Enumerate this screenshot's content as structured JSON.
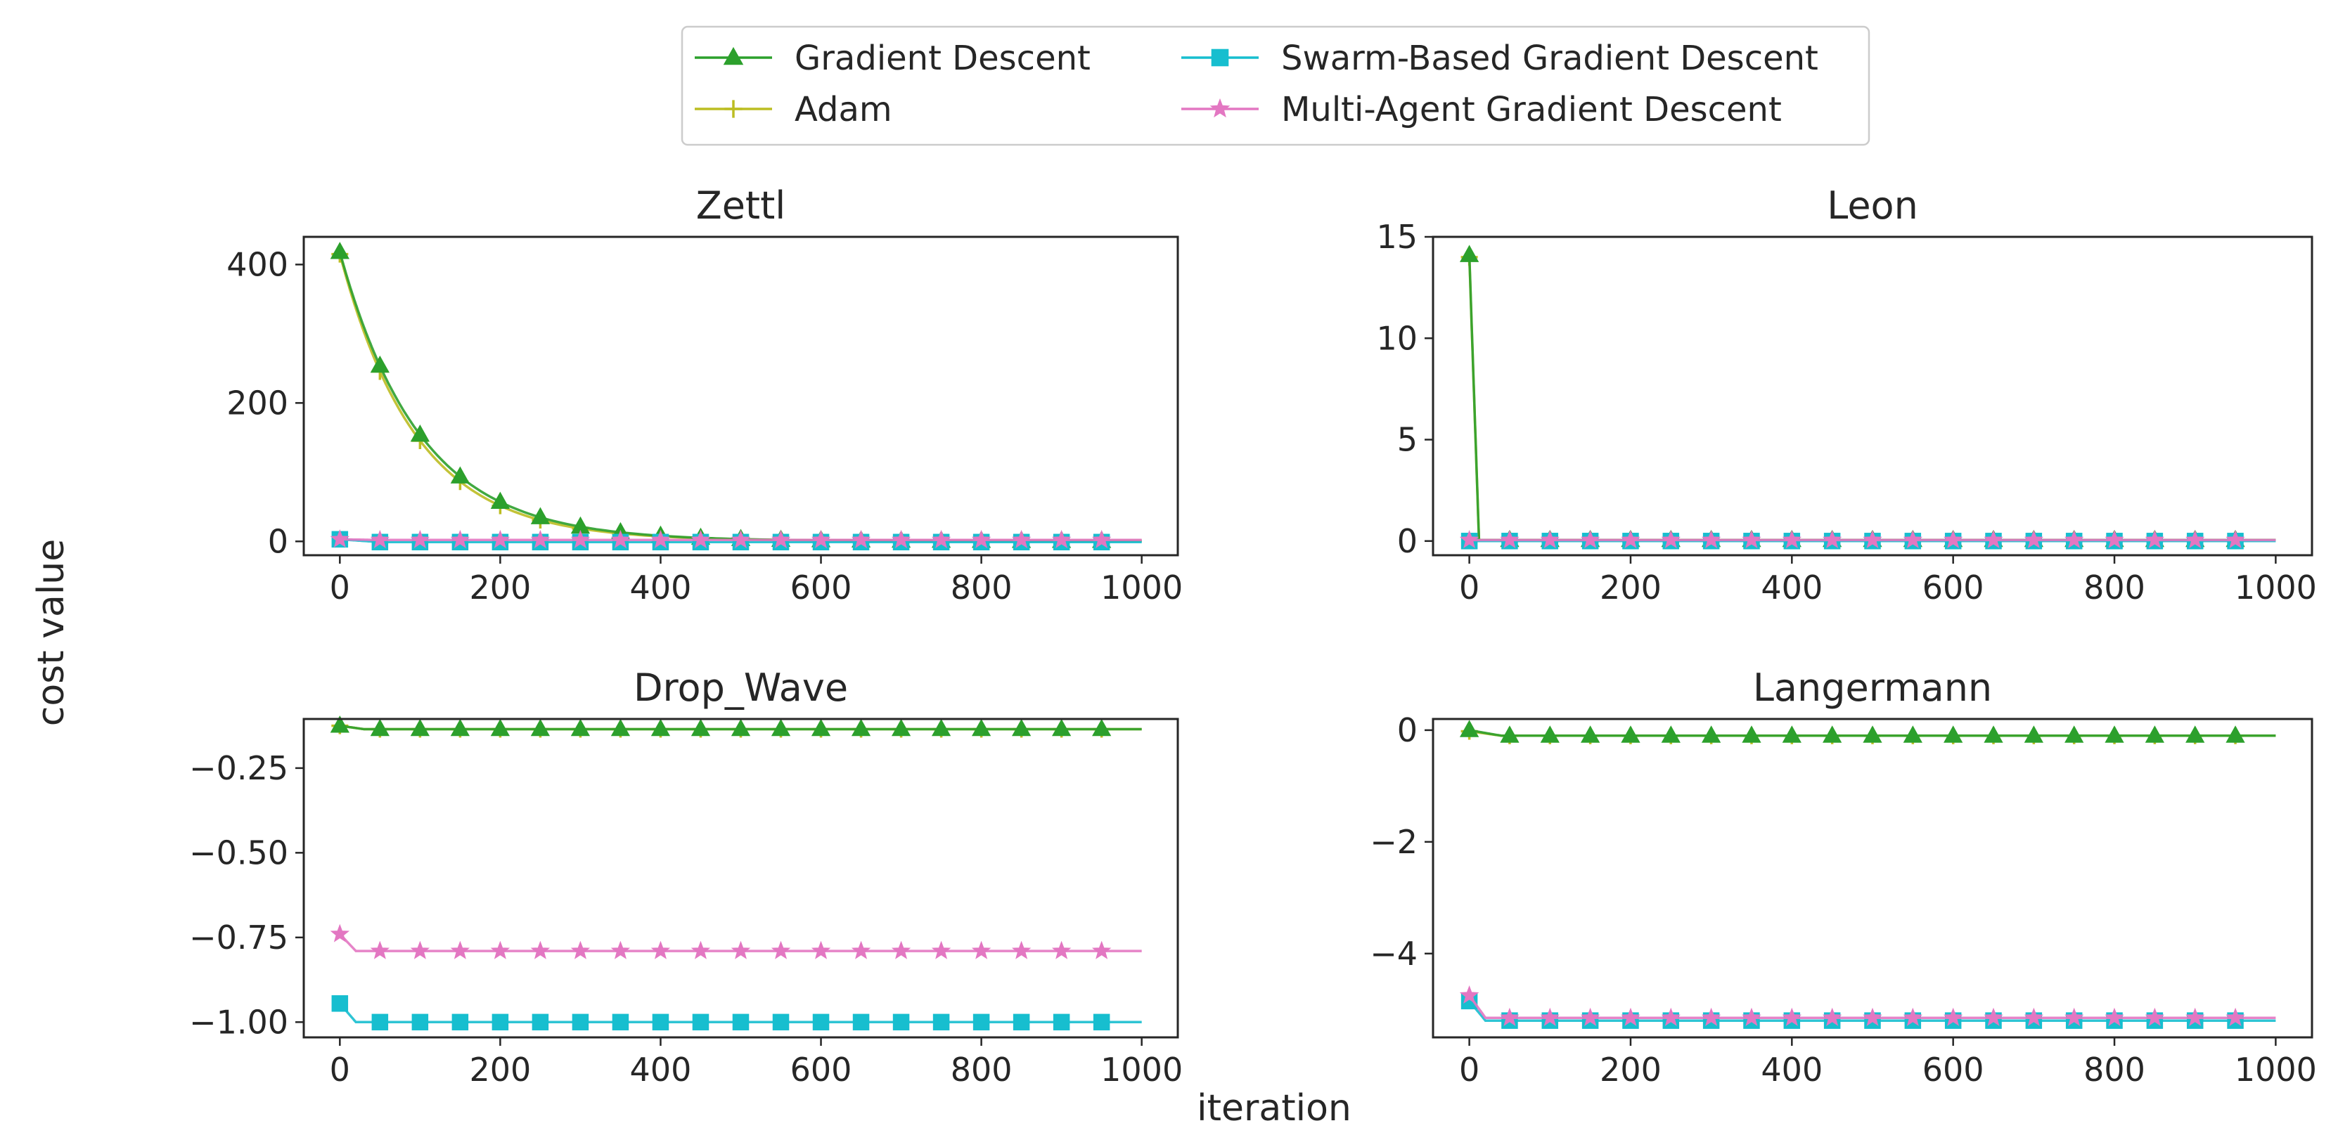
{
  "figure": {
    "ylabel": "cost value",
    "xlabel": "iteration"
  },
  "legend": {
    "placement": "top-center",
    "entries": [
      {
        "key": "gd",
        "label": "Gradient Descent",
        "marker": "triangle",
        "color": "#2ca02c"
      },
      {
        "key": "adam",
        "label": "Adam",
        "marker": "plus",
        "color": "#bcbd22"
      },
      {
        "key": "sbgd",
        "label": "Swarm-Based Gradient Descent",
        "marker": "square",
        "color": "#17becf"
      },
      {
        "key": "magd",
        "label": "Multi-Agent Gradient Descent",
        "marker": "star",
        "color": "#e377c2"
      }
    ]
  },
  "chart_data": [
    {
      "type": "line",
      "title": "Zettl",
      "xlim": [
        -45,
        1045
      ],
      "ylim": [
        -20,
        440
      ],
      "xticks": [
        0,
        200,
        400,
        600,
        800,
        1000
      ],
      "xtick_labels": [
        "0",
        "200",
        "400",
        "600",
        "800",
        "1000"
      ],
      "yticks": [
        0,
        200,
        400
      ],
      "ytick_labels": [
        "0",
        "200",
        "400"
      ],
      "series": [
        {
          "key": "adam",
          "name": "Adam",
          "profile": "exp",
          "start": 415,
          "end": 1,
          "tau": 95,
          "marker_every": 50
        },
        {
          "key": "gd",
          "name": "Gradient Descent",
          "profile": "exp",
          "start": 418,
          "end": 0.5,
          "tau": 100,
          "marker_every": 50
        },
        {
          "key": "sbgd",
          "name": "Swarm-Based Gradient Descent",
          "profile": "steps",
          "points": [
            [
              0,
              3
            ],
            [
              50,
              -1
            ],
            [
              100,
              -1
            ]
          ],
          "end": -1,
          "marker_every": 50
        },
        {
          "key": "magd",
          "name": "Multi-Agent Gradient Descent",
          "profile": "steps",
          "points": [
            [
              0,
              3
            ],
            [
              50,
              2
            ]
          ],
          "end": 2,
          "marker_every": 50
        }
      ]
    },
    {
      "type": "line",
      "title": "Leon",
      "xlim": [
        -45,
        1045
      ],
      "ylim": [
        -0.7,
        15.0
      ],
      "xticks": [
        0,
        200,
        400,
        600,
        800,
        1000
      ],
      "xtick_labels": [
        "0",
        "200",
        "400",
        "600",
        "800",
        "1000"
      ],
      "yticks": [
        0,
        5,
        10,
        15
      ],
      "ytick_labels": [
        "0",
        "5",
        "10",
        "15"
      ],
      "series": [
        {
          "key": "adam",
          "name": "Adam",
          "profile": "spike",
          "start": 14.0,
          "end": 0.05,
          "drop_at": 12,
          "marker_every": 50
        },
        {
          "key": "gd",
          "name": "Gradient Descent",
          "profile": "spike",
          "start": 14.1,
          "end": 0.05,
          "drop_at": 12,
          "marker_every": 50
        },
        {
          "key": "sbgd",
          "name": "Swarm-Based Gradient Descent",
          "profile": "steps",
          "points": [
            [
              0,
              0.0
            ]
          ],
          "end": 0.0,
          "marker_every": 50
        },
        {
          "key": "magd",
          "name": "Multi-Agent Gradient Descent",
          "profile": "steps",
          "points": [
            [
              0,
              0.05
            ]
          ],
          "end": 0.05,
          "marker_every": 50
        }
      ]
    },
    {
      "type": "line",
      "title": "Drop_Wave",
      "xlim": [
        -45,
        1045
      ],
      "ylim": [
        -1.045,
        -0.105
      ],
      "xticks": [
        0,
        200,
        400,
        600,
        800,
        1000
      ],
      "xtick_labels": [
        "0",
        "200",
        "400",
        "600",
        "800",
        "1000"
      ],
      "yticks": [
        -1.0,
        -0.75,
        -0.5,
        -0.25
      ],
      "ytick_labels": [
        "−1.00",
        "−0.75",
        "−0.50",
        "−0.25"
      ],
      "series": [
        {
          "key": "adam",
          "name": "Adam",
          "profile": "steps",
          "points": [
            [
              0,
              -0.125
            ],
            [
              30,
              -0.135
            ]
          ],
          "end": -0.135,
          "marker_every": 50
        },
        {
          "key": "gd",
          "name": "Gradient Descent",
          "profile": "steps",
          "points": [
            [
              0,
              -0.125
            ],
            [
              30,
              -0.135
            ]
          ],
          "end": -0.135,
          "marker_every": 50
        },
        {
          "key": "sbgd",
          "name": "Swarm-Based Gradient Descent",
          "profile": "steps",
          "points": [
            [
              0,
              -0.945
            ],
            [
              20,
              -1.0
            ]
          ],
          "end": -1.0,
          "marker_every": 50
        },
        {
          "key": "magd",
          "name": "Multi-Agent Gradient Descent",
          "profile": "steps",
          "points": [
            [
              0,
              -0.74
            ],
            [
              20,
              -0.79
            ]
          ],
          "end": -0.79,
          "marker_every": 50
        }
      ]
    },
    {
      "type": "line",
      "title": "Langermann",
      "xlim": [
        -45,
        1045
      ],
      "ylim": [
        -5.5,
        0.2
      ],
      "xticks": [
        0,
        200,
        400,
        600,
        800,
        1000
      ],
      "xtick_labels": [
        "0",
        "200",
        "400",
        "600",
        "800",
        "1000"
      ],
      "yticks": [
        -4,
        -2,
        0
      ],
      "ytick_labels": [
        "−4",
        "−2",
        "0"
      ],
      "series": [
        {
          "key": "adam",
          "name": "Adam",
          "profile": "steps",
          "points": [
            [
              0,
              -0.02
            ],
            [
              40,
              -0.1
            ]
          ],
          "end": -0.1,
          "marker_every": 50
        },
        {
          "key": "gd",
          "name": "Gradient Descent",
          "profile": "steps",
          "points": [
            [
              0,
              0.0
            ],
            [
              40,
              -0.1
            ]
          ],
          "end": -0.1,
          "marker_every": 50
        },
        {
          "key": "sbgd",
          "name": "Swarm-Based Gradient Descent",
          "profile": "steps",
          "points": [
            [
              0,
              -4.85
            ],
            [
              20,
              -5.2
            ]
          ],
          "end": -5.2,
          "marker_every": 50
        },
        {
          "key": "magd",
          "name": "Multi-Agent Gradient Descent",
          "profile": "steps",
          "points": [
            [
              0,
              -4.75
            ],
            [
              20,
              -5.15
            ]
          ],
          "end": -5.15,
          "marker_every": 50
        }
      ]
    }
  ]
}
